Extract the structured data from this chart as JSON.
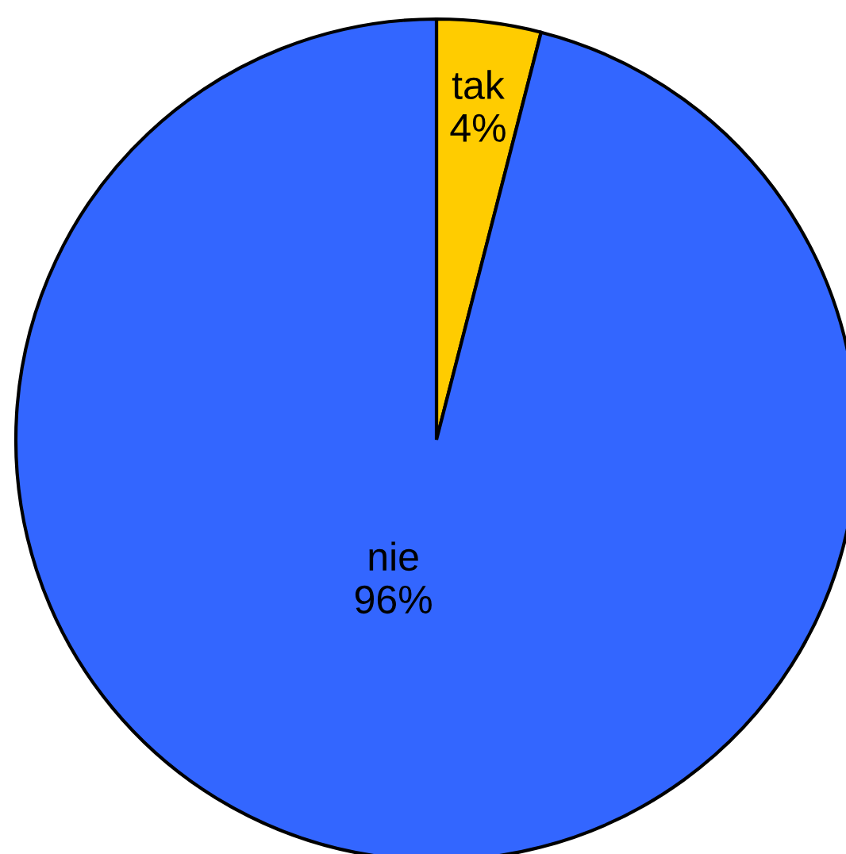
{
  "chart_data": {
    "type": "pie",
    "categories": [
      "tak",
      "nie"
    ],
    "values": [
      4,
      96
    ],
    "value_labels": [
      "4%",
      "96%"
    ],
    "colors": [
      "#ffcc00",
      "#3366ff"
    ]
  }
}
